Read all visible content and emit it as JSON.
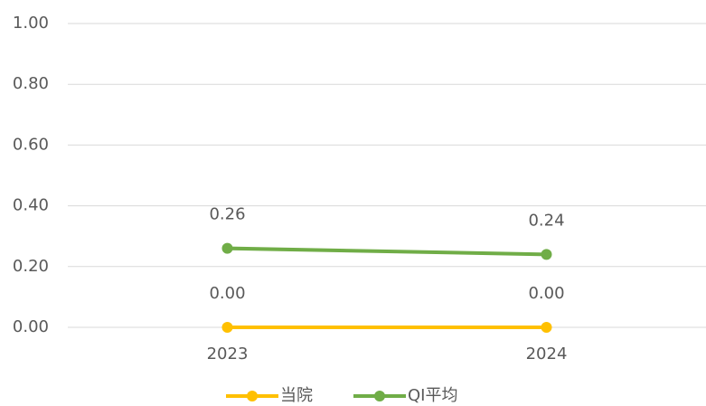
{
  "chart_data": {
    "type": "line",
    "categories": [
      "2023",
      "2024"
    ],
    "series": [
      {
        "name": "当院",
        "color": "#ffc000",
        "values": [
          0,
          0
        ],
        "value_labels": [
          "0.00",
          "0.00"
        ]
      },
      {
        "name": "QI平均",
        "color": "#70ad47",
        "values": [
          0.26,
          0.24
        ],
        "value_labels": [
          "0.26",
          "0.24"
        ]
      }
    ],
    "ylim": [
      0,
      1
    ],
    "yticks": [
      {
        "value": 0,
        "label": "0.00"
      },
      {
        "value": 0.2,
        "label": "0.20"
      },
      {
        "value": 0.4,
        "label": "0.40"
      },
      {
        "value": 0.6,
        "label": "0.60"
      },
      {
        "value": 0.8,
        "label": "0.80"
      },
      {
        "value": 1,
        "label": "1.00"
      }
    ],
    "grid": true,
    "legend": "bottom"
  }
}
